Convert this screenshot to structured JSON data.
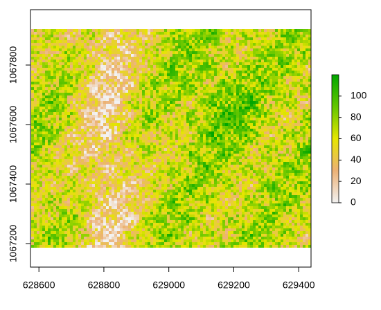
{
  "chart_data": {
    "type": "raster",
    "xlim": [
      628574,
      629438
    ],
    "xticks": [
      628600,
      628800,
      629000,
      629200,
      629400
    ],
    "ylim": [
      1067121,
      1067986
    ],
    "yticks": [
      1067200,
      1067400,
      1067600,
      1067800
    ],
    "zlim": [
      0,
      120
    ],
    "zticks": [
      0,
      20,
      40,
      60,
      80,
      100
    ],
    "colors": [
      "#F2F2F2",
      "#ECB176",
      "#E6E600",
      "#63C600",
      "#00A600"
    ]
  }
}
